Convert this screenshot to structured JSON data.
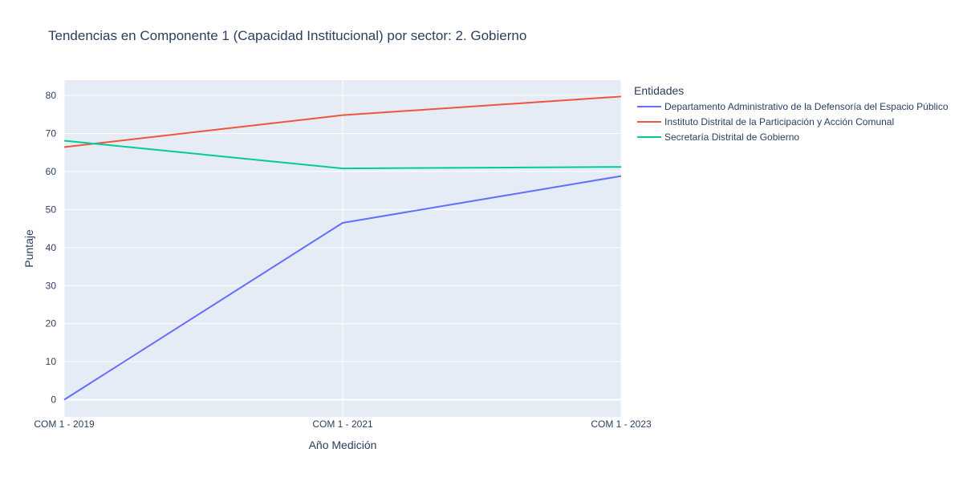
{
  "chart_data": {
    "type": "line",
    "title": "Tendencias en Componente 1 (Capacidad Institucional) por sector: 2. Gobierno",
    "xlabel": "Año Medición",
    "ylabel": "Puntaje",
    "categories": [
      "COM 1 - 2019",
      "COM 1 - 2021",
      "COM 1 - 2023"
    ],
    "ylim": [
      -4.5,
      84
    ],
    "yticks": [
      0,
      10,
      20,
      30,
      40,
      50,
      60,
      70,
      80
    ],
    "grid": true,
    "legend": {
      "title": "Entidades",
      "position": "right"
    },
    "series": [
      {
        "name": "Departamento Administrativo de la Defensoría del Espacio Público",
        "color": "#636efa",
        "values": [
          0,
          46.5,
          58.8
        ]
      },
      {
        "name": "Instituto Distrital de la Participación y Acción Comunal",
        "color": "#ef553b",
        "values": [
          66.4,
          74.8,
          79.7
        ]
      },
      {
        "name": "Secretaría Distrital de Gobierno",
        "color": "#00cc96",
        "values": [
          68.1,
          60.8,
          61.2
        ]
      }
    ]
  }
}
